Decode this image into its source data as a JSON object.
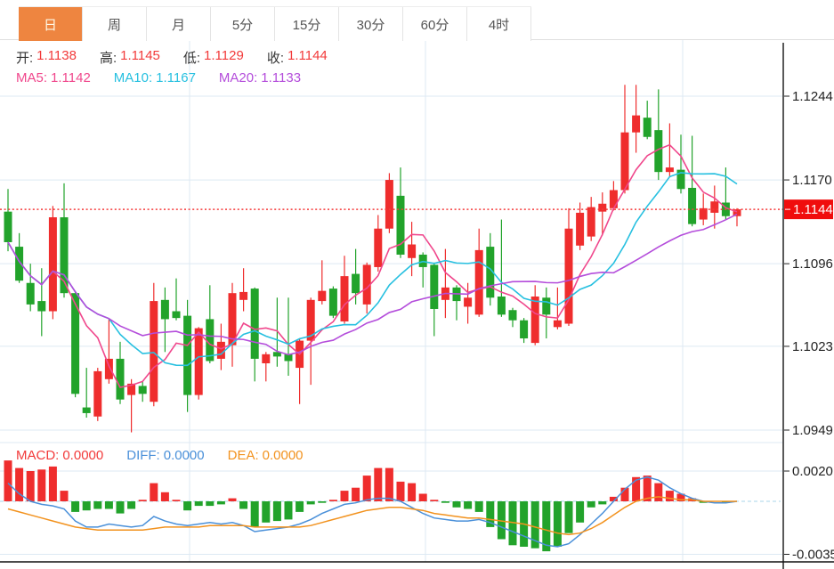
{
  "toolbar": {
    "tabs": [
      {
        "label": "日",
        "selected": true
      },
      {
        "label": "周",
        "selected": false
      },
      {
        "label": "月",
        "selected": false
      },
      {
        "label": "5分",
        "selected": false
      },
      {
        "label": "15分",
        "selected": false
      },
      {
        "label": "30分",
        "selected": false
      },
      {
        "label": "60分",
        "selected": false
      },
      {
        "label": "4时",
        "selected": false
      }
    ]
  },
  "ohlc_bar": {
    "open_label": "开:",
    "open": "1.1138",
    "high_label": "高:",
    "high": "1.1145",
    "low_label": "低:",
    "low": "1.1129",
    "close_label": "收:",
    "close": "1.1144"
  },
  "ma_bar": {
    "ma5_label": "MA5:",
    "ma5": "1.1142",
    "ma10_label": "MA10:",
    "ma10": "1.1167",
    "ma20_label": "MA20:",
    "ma20": "1.1133"
  },
  "macd_bar": {
    "macd_label": "MACD:",
    "macd": "0.0000",
    "diff_label": "DIFF:",
    "diff": "0.0000",
    "dea_label": "DEA:",
    "dea": "0.0000"
  },
  "price_axis": {
    "labels": [
      "1.1244",
      "1.1170",
      "1.1096",
      "1.1023",
      "1.0949"
    ],
    "current_price_label": "1.1144"
  },
  "macd_axis": {
    "labels": [
      "0.0020",
      "-0.0035"
    ]
  },
  "colors": {
    "up": "#ef2d2d",
    "down": "#22a32b",
    "ma5": "#f0478c",
    "ma10": "#27c0e0",
    "ma20": "#b44ddb",
    "diff": "#4a90d9",
    "dea": "#f2921e",
    "grid": "#dde9f3",
    "axis": "#222222",
    "dotted": "#f53b3b",
    "badge": "#f00d0d",
    "zero_dash": "#a8d4ea",
    "tab_active_bg": "#ee8540",
    "tab_active_text": "#fff9e6",
    "label_text": "#222222",
    "value_red": "#f23a3a"
  },
  "chart_data": {
    "type": "candlestick+macd",
    "price_pane": {
      "y_ticks": [
        1.1244,
        1.117,
        1.1096,
        1.1023,
        1.0949
      ],
      "current_price": 1.1144,
      "ohlc_latest": {
        "open": 1.1138,
        "high": 1.1145,
        "low": 1.1129,
        "close": 1.1144
      },
      "ma_periods": [
        5,
        10,
        20
      ],
      "ma_latest": {
        "ma5": 1.1142,
        "ma10": 1.1167,
        "ma20": 1.1133
      },
      "candles": [
        [
          1.1142,
          1.1162,
          1.1107,
          1.1115
        ],
        [
          1.1111,
          1.1123,
          1.1079,
          1.1081
        ],
        [
          1.1079,
          1.1096,
          1.1054,
          1.106
        ],
        [
          1.1063,
          1.1092,
          1.1032,
          1.1054
        ],
        [
          1.1054,
          1.1147,
          1.1047,
          1.1137
        ],
        [
          1.1137,
          1.1167,
          1.1066,
          1.107
        ],
        [
          1.107,
          1.1072,
          1.0978,
          1.0981
        ],
        [
          1.0969,
          1.1004,
          1.096,
          1.0964
        ],
        [
          1.0961,
          1.1004,
          1.0957,
          1.1001
        ],
        [
          1.0994,
          1.1047,
          1.099,
          1.1012
        ],
        [
          1.1012,
          1.1027,
          1.0972,
          1.0976
        ],
        [
          1.098,
          1.0994,
          1.0947,
          1.099
        ],
        [
          1.0988,
          1.0992,
          1.0974,
          1.0981
        ],
        [
          1.0974,
          1.1079,
          1.097,
          1.1063
        ],
        [
          1.1064,
          1.1075,
          1.1018,
          1.1047
        ],
        [
          1.1054,
          1.1083,
          1.1046,
          1.1048
        ],
        [
          1.105,
          1.1064,
          1.0965,
          1.098
        ],
        [
          1.098,
          1.104,
          1.0976,
          1.1039
        ],
        [
          1.1047,
          1.1077,
          1.1008,
          1.101
        ],
        [
          1.1012,
          1.1043,
          1.1002,
          1.1027
        ],
        [
          1.1024,
          1.1079,
          1.1005,
          1.107
        ],
        [
          1.1064,
          1.1092,
          1.1054,
          1.1071
        ],
        [
          1.1074,
          1.1075,
          1.0992,
          1.1012
        ],
        [
          1.1008,
          1.1018,
          1.0992,
          1.1016
        ],
        [
          1.1018,
          1.1066,
          1.1005,
          1.1014
        ],
        [
          1.1016,
          1.1066,
          1.0997,
          1.101
        ],
        [
          1.1004,
          1.103,
          1.0972,
          1.1028
        ],
        [
          1.1028,
          1.1066,
          1.0989,
          1.1064
        ],
        [
          1.1063,
          1.1099,
          1.106,
          1.1072
        ],
        [
          1.1074,
          1.1076,
          1.1048,
          1.105
        ],
        [
          1.1045,
          1.1103,
          1.1043,
          1.1085
        ],
        [
          1.1087,
          1.1109,
          1.106,
          1.107
        ],
        [
          1.106,
          1.1097,
          1.1052,
          1.1095
        ],
        [
          1.1093,
          1.1139,
          1.1089,
          1.1127
        ],
        [
          1.1127,
          1.1176,
          1.1123,
          1.117
        ],
        [
          1.1156,
          1.1181,
          1.1101,
          1.1104
        ],
        [
          1.1101,
          1.1133,
          1.1085,
          1.1113
        ],
        [
          1.1104,
          1.1106,
          1.1075,
          1.1093
        ],
        [
          1.1095,
          1.1097,
          1.1032,
          1.1056
        ],
        [
          1.1064,
          1.1109,
          1.1048,
          1.1075
        ],
        [
          1.1075,
          1.1077,
          1.1046,
          1.1063
        ],
        [
          1.1058,
          1.1079,
          1.1043,
          1.1066
        ],
        [
          1.1051,
          1.1127,
          1.1049,
          1.1108
        ],
        [
          1.1111,
          1.1123,
          1.1059,
          1.1066
        ],
        [
          1.1067,
          1.1135,
          1.1049,
          1.1051
        ],
        [
          1.1055,
          1.1057,
          1.104,
          1.1046
        ],
        [
          1.1046,
          1.1048,
          1.1026,
          1.103
        ],
        [
          1.1026,
          1.1077,
          1.1024,
          1.1067
        ],
        [
          1.1066,
          1.1075,
          1.103,
          1.1051
        ],
        [
          1.104,
          1.1075,
          1.1038,
          1.1046
        ],
        [
          1.1043,
          1.1145,
          1.1041,
          1.1127
        ],
        [
          1.1112,
          1.115,
          1.1108,
          1.1141
        ],
        [
          1.112,
          1.1155,
          1.1116,
          1.1146
        ],
        [
          1.1142,
          1.1159,
          1.1121,
          1.1149
        ],
        [
          1.1145,
          1.1169,
          1.1143,
          1.1161
        ],
        [
          1.1161,
          1.1254,
          1.1158,
          1.1212
        ],
        [
          1.1212,
          1.1254,
          1.1194,
          1.1227
        ],
        [
          1.1225,
          1.124,
          1.1206,
          1.1208
        ],
        [
          1.1214,
          1.125,
          1.117,
          1.1177
        ],
        [
          1.1177,
          1.122,
          1.1173,
          1.1181
        ],
        [
          1.1179,
          1.121,
          1.1158,
          1.1162
        ],
        [
          1.1163,
          1.1209,
          1.1129,
          1.1131
        ],
        [
          1.1135,
          1.1158,
          1.113,
          1.1145
        ],
        [
          1.1141,
          1.1165,
          1.1127,
          1.1151
        ],
        [
          1.115,
          1.1181,
          1.1135,
          1.1138
        ],
        [
          1.1138,
          1.1145,
          1.1129,
          1.1144
        ]
      ]
    },
    "macd_pane": {
      "y_ticks": [
        0.002,
        -0.0035
      ],
      "latest": {
        "macd": 0.0,
        "diff": 0.0,
        "dea": 0.0
      },
      "histogram": [
        0.0027,
        0.0022,
        0.002,
        0.0021,
        0.0023,
        0.0007,
        -0.0007,
        -0.0006,
        -0.0005,
        -0.0005,
        -0.0008,
        -0.0005,
        0.0001,
        0.0012,
        0.0006,
        0.0001,
        -0.0006,
        -0.0003,
        -0.0003,
        -0.0002,
        0.0002,
        -0.0005,
        -0.0017,
        -0.0014,
        -0.0013,
        -0.0012,
        -0.0007,
        -0.0002,
        -0.0001,
        0.0001,
        0.0007,
        0.0009,
        0.0017,
        0.0022,
        0.0022,
        0.0013,
        0.0012,
        0.0005,
        0.0001,
        -0.0001,
        -0.0004,
        -0.0005,
        -0.0007,
        -0.0017,
        -0.0025,
        -0.0029,
        -0.003,
        -0.0031,
        -0.0033,
        -0.003,
        -0.0021,
        -0.0014,
        -0.0004,
        -0.0002,
        0.0003,
        0.0009,
        0.0016,
        0.0017,
        0.0012,
        0.0007,
        0.0005,
        0.0002,
        -0.0001,
        0.0,
        -0.0001,
        0.0
      ],
      "diff": [
        0.0012,
        0.0005,
        0.0,
        -0.0002,
        -0.0003,
        -0.0005,
        -0.0013,
        -0.0017,
        -0.0017,
        -0.0015,
        -0.0016,
        -0.0017,
        -0.0016,
        -0.001,
        -0.0013,
        -0.0015,
        -0.0016,
        -0.0015,
        -0.0014,
        -0.0015,
        -0.0014,
        -0.0016,
        -0.002,
        -0.0019,
        -0.0018,
        -0.0017,
        -0.0015,
        -0.0012,
        -0.0008,
        -0.0005,
        -0.0002,
        -0.0001,
        0.0001,
        0.0002,
        0.0002,
        0.0,
        -0.0004,
        -0.0008,
        -0.0011,
        -0.0012,
        -0.0013,
        -0.0013,
        -0.0012,
        -0.0014,
        -0.0017,
        -0.002,
        -0.0023,
        -0.0026,
        -0.0029,
        -0.003,
        -0.0028,
        -0.0022,
        -0.0015,
        -0.0008,
        0.0,
        0.0008,
        0.0014,
        0.0016,
        0.0014,
        0.0009,
        0.0005,
        0.0002,
        0.0,
        -0.0001,
        -0.0001,
        0.0
      ],
      "dea": [
        -0.0005,
        -0.0007,
        -0.0009,
        -0.0011,
        -0.0013,
        -0.0015,
        -0.0017,
        -0.0018,
        -0.0019,
        -0.0019,
        -0.0019,
        -0.0019,
        -0.0019,
        -0.0018,
        -0.0017,
        -0.0017,
        -0.0017,
        -0.0017,
        -0.0016,
        -0.0016,
        -0.0016,
        -0.0016,
        -0.0017,
        -0.0017,
        -0.0017,
        -0.0017,
        -0.0017,
        -0.0016,
        -0.0014,
        -0.0012,
        -0.001,
        -0.0008,
        -0.0006,
        -0.0005,
        -0.0004,
        -0.0004,
        -0.0005,
        -0.0006,
        -0.0008,
        -0.0009,
        -0.001,
        -0.0011,
        -0.0011,
        -0.0012,
        -0.0013,
        -0.0014,
        -0.0015,
        -0.0017,
        -0.0019,
        -0.0021,
        -0.0022,
        -0.0021,
        -0.0018,
        -0.0014,
        -0.0009,
        -0.0004,
        0.0,
        0.0002,
        0.0003,
        0.0002,
        0.0001,
        0.0001,
        0.0,
        0.0,
        0.0,
        0.0
      ]
    }
  }
}
